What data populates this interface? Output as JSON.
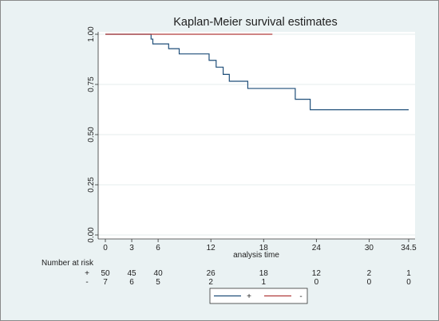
{
  "chart_data": {
    "type": "line",
    "title": "Kaplan-Meier survival estimates",
    "xlabel": "analysis time",
    "ylabel": "",
    "xlim": [
      0,
      34.5
    ],
    "ylim": [
      0,
      1
    ],
    "x_ticks": [
      0,
      3,
      6,
      12,
      18,
      24,
      30,
      34.5
    ],
    "x_tick_labels": [
      "0",
      "3",
      "6",
      "12",
      "18",
      "24",
      "30",
      "34.5"
    ],
    "y_ticks": [
      0,
      0.25,
      0.5,
      0.75,
      1
    ],
    "y_tick_labels": [
      "0.00",
      "0.25",
      "0.50",
      "0.75",
      "1.00"
    ],
    "grid": true,
    "legend_position": "bottom",
    "series": [
      {
        "name": "+",
        "color": "#1f4e79",
        "step_x": [
          0,
          5.2,
          5.4,
          7.2,
          8.4,
          11.8,
          12.6,
          13.4,
          14.1,
          16.2,
          21.6,
          23.3,
          34.5
        ],
        "step_y": [
          1.0,
          0.976,
          0.952,
          0.928,
          0.902,
          0.87,
          0.836,
          0.8,
          0.766,
          0.73,
          0.676,
          0.624,
          0.624
        ]
      },
      {
        "name": "-",
        "color": "#b03a3a",
        "step_x": [
          0,
          19.0
        ],
        "step_y": [
          1.0,
          1.0
        ]
      }
    ],
    "risk_table": {
      "header": "Number at risk",
      "times": [
        0,
        3,
        6,
        12,
        18,
        24,
        30,
        34.5
      ],
      "rows": [
        {
          "label": "+",
          "values": [
            "50",
            "45",
            "40",
            "26",
            "18",
            "12",
            "2",
            "1"
          ]
        },
        {
          "label": "-",
          "values": [
            "7",
            "6",
            "5",
            "2",
            "1",
            "0",
            "0",
            "0"
          ]
        }
      ]
    }
  }
}
